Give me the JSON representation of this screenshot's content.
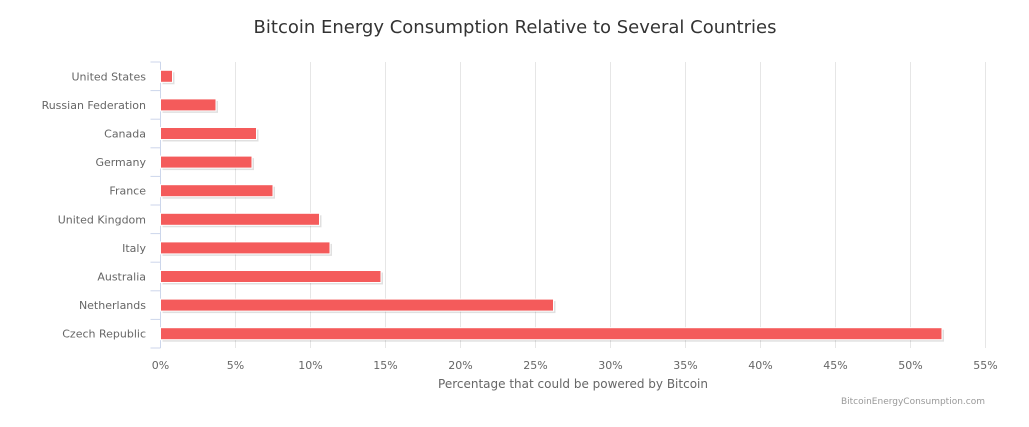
{
  "chart_data": {
    "type": "bar",
    "orientation": "horizontal",
    "title": "Bitcoin Energy Consumption Relative to Several Countries",
    "xlabel": "Percentage that could be powered by Bitcoin",
    "ylabel": "",
    "categories": [
      "United States",
      "Russian Federation",
      "Canada",
      "Germany",
      "France",
      "United Kingdom",
      "Italy",
      "Australia",
      "Netherlands",
      "Czech Republic"
    ],
    "values": [
      0.8,
      3.7,
      6.4,
      6.1,
      7.5,
      10.6,
      11.3,
      14.7,
      26.2,
      52.1
    ],
    "xlim": [
      0,
      55
    ],
    "xticks": [
      "0%",
      "5%",
      "10%",
      "15%",
      "20%",
      "25%",
      "30%",
      "35%",
      "40%",
      "45%",
      "50%",
      "55%"
    ],
    "grid": true,
    "bar_color": "#f45b5b",
    "credit": "BitcoinEnergyConsumption.com"
  }
}
